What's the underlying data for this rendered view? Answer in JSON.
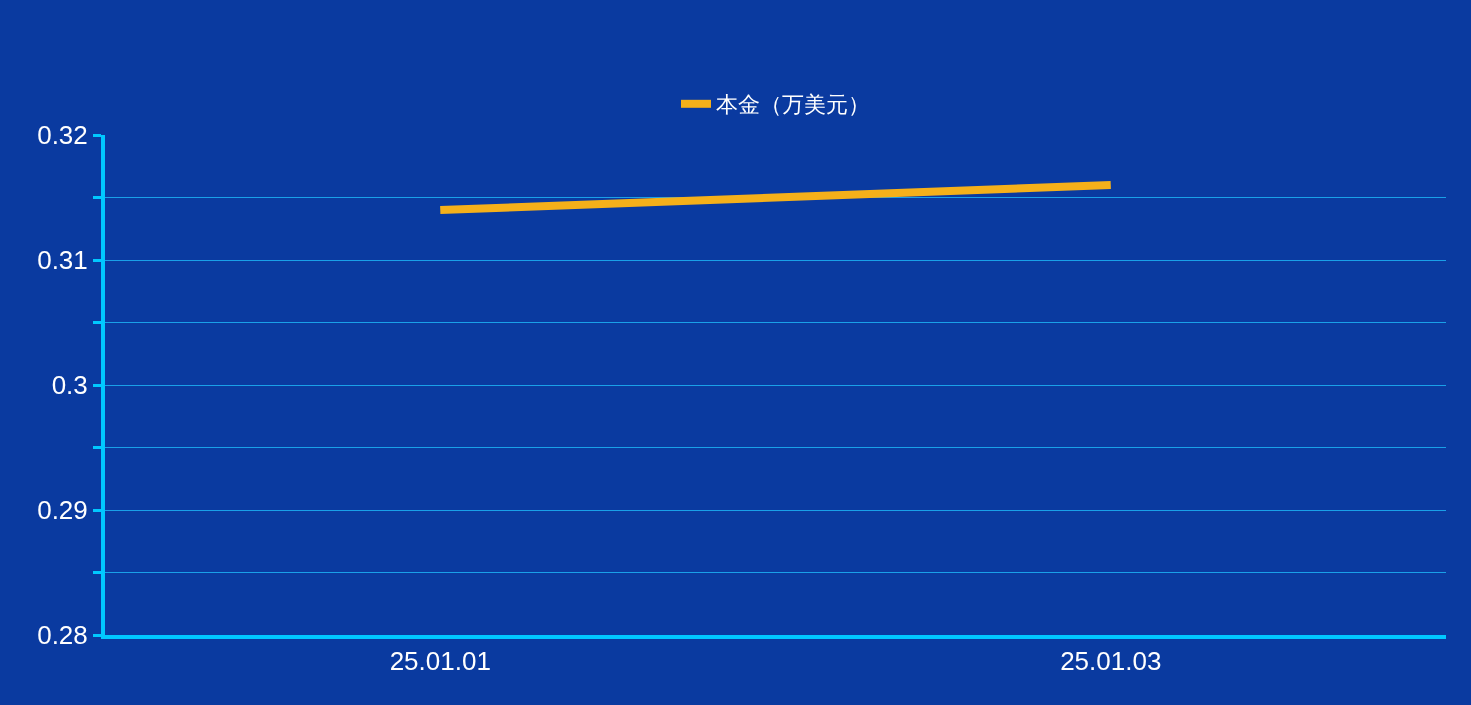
{
  "chart_data": {
    "type": "line",
    "categories": [
      "25.01.01",
      "25.01.03"
    ],
    "series": [
      {
        "name": "本金（万美元）",
        "color": "#f5b01a",
        "values": [
          0.314,
          0.316
        ]
      }
    ],
    "ylim": [
      0.28,
      0.32
    ],
    "yticks": [
      0.28,
      {
        "value": 0.285,
        "label": null
      },
      0.29,
      {
        "value": 0.295,
        "label": null
      },
      0.3,
      {
        "value": 0.305,
        "label": null
      },
      0.31,
      {
        "value": 0.315,
        "label": null
      },
      0.32
    ],
    "grid": "y",
    "legend": "top",
    "marker": "none",
    "line_style": "solid"
  }
}
